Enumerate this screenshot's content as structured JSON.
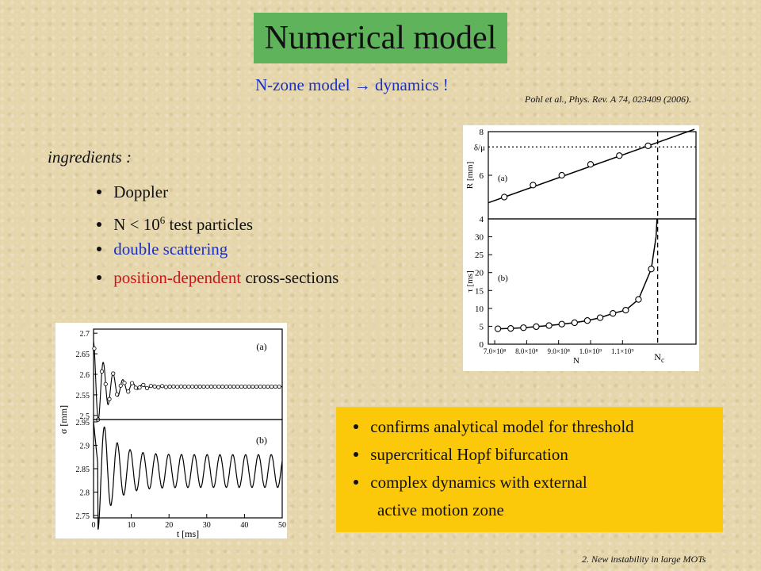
{
  "slide": {
    "title": "Numerical model",
    "subtitle": "N-zone model  →  dynamics !",
    "citation": "Pohl et al., Phys. Rev. A 74, 023409 (2006).",
    "ingredients_label": "ingredients :",
    "bullets": {
      "b1": "Doppler",
      "b2_prefix": "N < 10",
      "b2_sup": "6",
      "b2_suffix": " test particles",
      "b3": "double scattering",
      "b4_colored": "position-dependent",
      "b4_rest": " cross-sections"
    },
    "conclusions": {
      "c1": "confirms analytical model for threshold",
      "c2": "supercritical Hopf bifurcation",
      "c3": "complex dynamics with external",
      "c3_cont": "active motion zone"
    },
    "footer": "2. New instability  in large MOTs"
  },
  "colors": {
    "title_bg": "#5fb35a",
    "blue_text": "#1a2fc4",
    "red_text": "#c8161d",
    "conclusion_bg": "#fcc80a"
  },
  "chart_data": [
    {
      "type": "line",
      "panel": "(a)",
      "xlabel": "N",
      "ylabel": "R [mm]",
      "ylim": [
        4,
        8
      ],
      "y_ticks": [
        "4",
        "6",
        "8"
      ],
      "extra_y_tick": "δ/μ",
      "threshold_y": 7.3,
      "vline_label": "N",
      "vline_label_sub": "c",
      "series": [
        {
          "x": [
            730000000.0,
            820000000.0,
            910000000.0,
            1000000000.0,
            1090000000.0,
            1180000000.0
          ],
          "values": [
            5.0,
            5.55,
            6.0,
            6.5,
            6.9,
            7.35
          ]
        }
      ]
    },
    {
      "type": "line",
      "panel": "(b)",
      "xlabel": "N",
      "ylabel": "τ [ms]",
      "ylim": [
        0,
        35
      ],
      "y_ticks": [
        "0",
        "5",
        "10",
        "15",
        "20",
        "25",
        "30"
      ],
      "x_ticks": [
        "7.0×10⁸",
        "8.0×10⁸",
        "9.0×10⁸",
        "1.0×10⁹",
        "1.1×10⁹"
      ],
      "series": [
        {
          "x": [
            710000000.0,
            750000000.0,
            790000000.0,
            830000000.0,
            870000000.0,
            910000000.0,
            950000000.0,
            990000000.0,
            1030000000.0,
            1070000000.0,
            1110000000.0,
            1150000000.0,
            1190000000.0
          ],
          "values": [
            4.3,
            4.4,
            4.6,
            4.9,
            5.2,
            5.6,
            6.0,
            6.6,
            7.4,
            8.6,
            9.5,
            12.5,
            21.0
          ]
        }
      ]
    },
    {
      "type": "line",
      "panel": "(a)",
      "xlabel": "t [ms]",
      "ylabel": "σ [mm]",
      "ylim": [
        2.5,
        2.7
      ],
      "y_ticks": [
        "2.5",
        "2.55",
        "2.6",
        "2.65",
        "2.7"
      ],
      "note": "damped oscillation settling near 2.57 mm",
      "series": [
        {
          "name": "",
          "values": []
        }
      ]
    },
    {
      "type": "line",
      "panel": "(b)",
      "xlabel": "t [ms]",
      "ylabel": "σ [mm]",
      "ylim": [
        2.75,
        2.95
      ],
      "y_ticks": [
        "2.75",
        "2.8",
        "2.85",
        "2.9",
        "2.95"
      ],
      "x_ticks": [
        "0",
        "10",
        "20",
        "30",
        "40",
        "50"
      ],
      "note": "sustained oscillation between about 2.81 and 2.88 mm",
      "series": [
        {
          "name": "",
          "values": []
        }
      ]
    }
  ]
}
